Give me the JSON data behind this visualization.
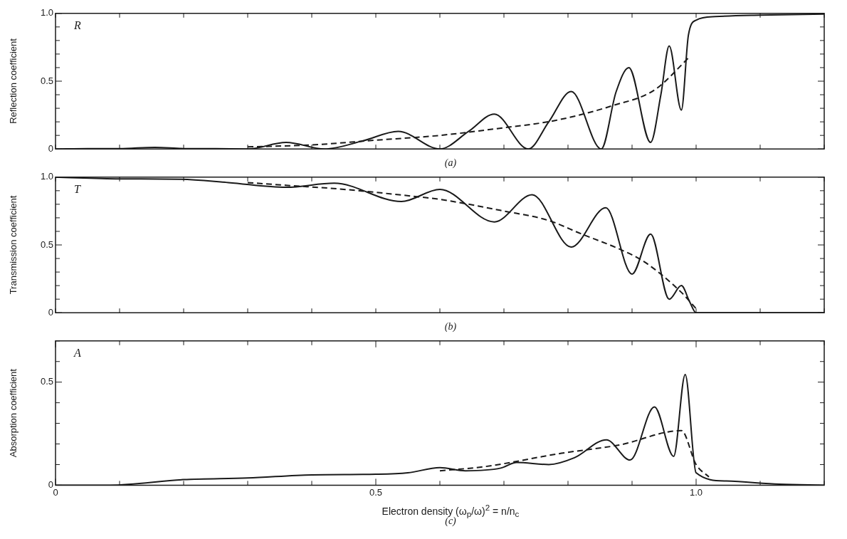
{
  "chart_data": [
    {
      "type": "line",
      "ylabel": "Reflection coefficient",
      "annotations": [
        "R",
        "(a)"
      ],
      "xlim": [
        0,
        1.2
      ],
      "ylim": [
        0,
        1
      ],
      "tick_labels": "y",
      "grid": false,
      "xticks": [
        {
          "value": 0,
          "label": null
        },
        {
          "value": 0.1,
          "label": null
        },
        {
          "value": 0.2,
          "label": null
        },
        {
          "value": 0.3,
          "label": null
        },
        {
          "value": 0.4,
          "label": null
        },
        {
          "value": 0.5,
          "label": null
        },
        {
          "value": 0.6,
          "label": null
        },
        {
          "value": 0.7,
          "label": null
        },
        {
          "value": 0.8,
          "label": null
        },
        {
          "value": 0.9,
          "label": null
        },
        {
          "value": 1,
          "label": null
        },
        {
          "value": 1.1,
          "label": null
        },
        {
          "value": 1.2,
          "label": null
        }
      ],
      "yticks": [
        {
          "value": 0,
          "label": "0"
        },
        {
          "value": 0.1,
          "label": null
        },
        {
          "value": 0.2,
          "label": null
        },
        {
          "value": 0.3,
          "label": null
        },
        {
          "value": 0.4,
          "label": null
        },
        {
          "value": 0.5,
          "label": "0.5"
        },
        {
          "value": 0.6,
          "label": null
        },
        {
          "value": 0.7,
          "label": null
        },
        {
          "value": 0.8,
          "label": null
        },
        {
          "value": 0.9,
          "label": null
        },
        {
          "value": 1,
          "label": "1.0"
        }
      ],
      "series": [
        {
          "color": "#1a1a1a",
          "line_style": "solid",
          "x": [
            0,
            0.05,
            0.1,
            0.155,
            0.2,
            0.25,
            0.3,
            0.36,
            0.42,
            0.48,
            0.535,
            0.6,
            0.645,
            0.685,
            0.738,
            0.77,
            0.805,
            0.852,
            0.875,
            0.895,
            0.929,
            0.945,
            0.958,
            0.977,
            0.988,
            1.0,
            1.03,
            1.1,
            1.2
          ],
          "values": [
            0,
            0.003,
            0.002,
            0.012,
            0.003,
            0.002,
            0,
            0.048,
            0,
            0.06,
            0.13,
            0,
            0.13,
            0.257,
            0,
            0.2,
            0.424,
            0,
            0.42,
            0.6,
            0.048,
            0.4,
            0.76,
            0.287,
            0.84,
            0.95,
            0.976,
            0.987,
            0.995
          ]
        },
        {
          "color": "#1a1a1a",
          "line_style": "dashed",
          "x": [
            0.3,
            0.4,
            0.5,
            0.6,
            0.689,
            0.78,
            0.87,
            0.935,
            0.99
          ],
          "values": [
            0.015,
            0.03,
            0.065,
            0.1,
            0.15,
            0.21,
            0.32,
            0.435,
            0.68
          ]
        }
      ]
    },
    {
      "type": "line",
      "ylabel": "Transmission coefficient",
      "annotations": [
        "T",
        "(b)"
      ],
      "xlim": [
        0,
        1.2
      ],
      "ylim": [
        0,
        1
      ],
      "tick_labels": "y",
      "grid": false,
      "xticks": [
        {
          "value": 0,
          "label": null
        },
        {
          "value": 0.1,
          "label": null
        },
        {
          "value": 0.2,
          "label": null
        },
        {
          "value": 0.3,
          "label": null
        },
        {
          "value": 0.4,
          "label": null
        },
        {
          "value": 0.5,
          "label": null
        },
        {
          "value": 0.6,
          "label": null
        },
        {
          "value": 0.7,
          "label": null
        },
        {
          "value": 0.8,
          "label": null
        },
        {
          "value": 0.9,
          "label": null
        },
        {
          "value": 1,
          "label": null
        },
        {
          "value": 1.1,
          "label": null
        },
        {
          "value": 1.2,
          "label": null
        }
      ],
      "yticks": [
        {
          "value": 0,
          "label": "0"
        },
        {
          "value": 0.1,
          "label": null
        },
        {
          "value": 0.2,
          "label": null
        },
        {
          "value": 0.3,
          "label": null
        },
        {
          "value": 0.4,
          "label": null
        },
        {
          "value": 0.5,
          "label": "0.5"
        },
        {
          "value": 0.6,
          "label": null
        },
        {
          "value": 0.7,
          "label": null
        },
        {
          "value": 0.8,
          "label": null
        },
        {
          "value": 0.9,
          "label": null
        },
        {
          "value": 1,
          "label": "1.0"
        }
      ],
      "series": [
        {
          "color": "#1a1a1a",
          "line_style": "solid",
          "x": [
            0,
            0.1,
            0.193,
            0.27,
            0.36,
            0.435,
            0.54,
            0.6,
            0.685,
            0.744,
            0.805,
            0.859,
            0.9,
            0.929,
            0.958,
            0.977,
            0.99,
            1.0,
            1.05,
            1.2
          ],
          "values": [
            1,
            0.987,
            0.985,
            0.96,
            0.925,
            0.955,
            0.82,
            0.91,
            0.67,
            0.87,
            0.484,
            0.774,
            0.285,
            0.58,
            0.1,
            0.2,
            0.08,
            0,
            0,
            0
          ]
        },
        {
          "color": "#1a1a1a",
          "line_style": "dashed",
          "x": [
            0.3,
            0.36,
            0.45,
            0.556,
            0.6,
            0.7,
            0.77,
            0.82,
            0.88,
            0.919,
            0.977,
            1.0
          ],
          "values": [
            0.96,
            0.94,
            0.91,
            0.86,
            0.836,
            0.75,
            0.68,
            0.583,
            0.47,
            0.376,
            0.15,
            0.03
          ]
        }
      ]
    },
    {
      "type": "line",
      "ylabel": "Absorption coefficient",
      "xlabel": "Electron density (ω$_{p}$/ω)$^{2}$ = n/n$_{c}$",
      "annotations": [
        "A",
        "(c)"
      ],
      "xlim": [
        0,
        1.2
      ],
      "ylim": [
        0,
        0.7
      ],
      "grid": false,
      "xticks": [
        {
          "value": 0,
          "label": "0"
        },
        {
          "value": 0.1,
          "label": null
        },
        {
          "value": 0.2,
          "label": null
        },
        {
          "value": 0.3,
          "label": null
        },
        {
          "value": 0.4,
          "label": null
        },
        {
          "value": 0.5,
          "label": "0.5"
        },
        {
          "value": 0.6,
          "label": null
        },
        {
          "value": 0.7,
          "label": null
        },
        {
          "value": 0.8,
          "label": null
        },
        {
          "value": 0.9,
          "label": null
        },
        {
          "value": 1,
          "label": "1.0"
        },
        {
          "value": 1.1,
          "label": null
        },
        {
          "value": 1.2,
          "label": null
        }
      ],
      "yticks": [
        {
          "value": 0,
          "label": "0"
        },
        {
          "value": 0.1,
          "label": null
        },
        {
          "value": 0.2,
          "label": null
        },
        {
          "value": 0.3,
          "label": null
        },
        {
          "value": 0.4,
          "label": null
        },
        {
          "value": 0.5,
          "label": "0.5"
        },
        {
          "value": 0.6,
          "label": null
        },
        {
          "value": 0.7,
          "label": null
        }
      ],
      "series": [
        {
          "color": "#1a1a1a",
          "line_style": "solid",
          "x": [
            0,
            0.085,
            0.2,
            0.3,
            0.4,
            0.5,
            0.55,
            0.6,
            0.64,
            0.695,
            0.72,
            0.77,
            0.81,
            0.86,
            0.897,
            0.935,
            0.965,
            0.983,
            1.0,
            1.047,
            1.13,
            1.2
          ],
          "values": [
            0,
            0,
            0.027,
            0.035,
            0.05,
            0.053,
            0.06,
            0.085,
            0.07,
            0.083,
            0.11,
            0.1,
            0.133,
            0.22,
            0.122,
            0.38,
            0.14,
            0.537,
            0.06,
            0.02,
            0.005,
            0
          ]
        },
        {
          "color": "#1a1a1a",
          "line_style": "dashed",
          "x": [
            0.6,
            0.67,
            0.79,
            0.88,
            0.977,
            1.0,
            1.02
          ],
          "values": [
            0.07,
            0.09,
            0.155,
            0.195,
            0.265,
            0.1,
            0.04
          ]
        }
      ]
    }
  ]
}
